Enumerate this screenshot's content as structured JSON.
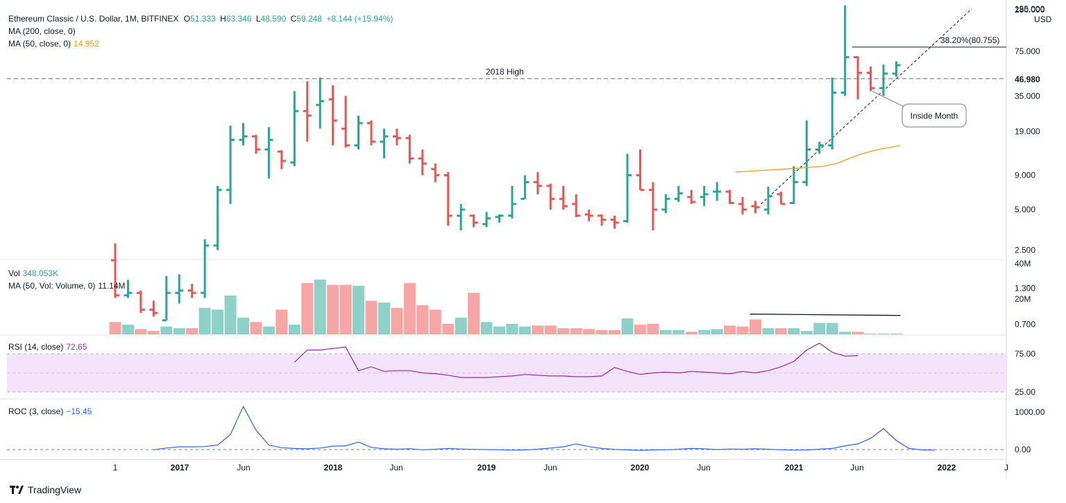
{
  "header": {
    "symbol": "Ethereum Classic / U.S. Dollar, 1M, BITFINEX",
    "o_label": "O",
    "o": "51.333",
    "h_label": "H",
    "h": "63.346",
    "l_label": "L",
    "l": "48.590",
    "c_label": "C",
    "c": "59.248",
    "change": "+8.144 (+15.94%)",
    "ma200": "MA (200, close, 0)",
    "ma50": "MA (50, close, 0)",
    "ma50_value": "14.952"
  },
  "footer": {
    "brand": "TradingView"
  },
  "colors": {
    "up": "#26a69a",
    "down": "#ef5350",
    "ma": "#f59b1b",
    "rsi": "#9c27b0",
    "roc": "#2962ff",
    "rsi_band": "#f3e4fb"
  },
  "chart_data": [
    {
      "type": "candlestick-ohlc",
      "title": "Ethereum Classic / U.S. Dollar, 1M, BITFINEX",
      "scale": "log",
      "currency": "USD",
      "y_ticks": [
        "280.000",
        "155.000",
        "75.000",
        "35.000",
        "19.000",
        "9.000",
        "5.000",
        "2.500",
        "1.300",
        "0.700"
      ],
      "x_ticks": [
        "1",
        "2017",
        "Jun",
        "2018",
        "Jun",
        "2019",
        "Jun",
        "2020",
        "Jun",
        "2021",
        "Jun",
        "2022",
        "J"
      ],
      "start_month": "2016-08",
      "bars": [
        [
          2.1,
          2.8,
          1.1,
          1.15
        ],
        [
          1.15,
          1.5,
          1.1,
          1.2
        ],
        [
          1.2,
          1.25,
          0.85,
          0.9
        ],
        [
          0.9,
          1.05,
          0.8,
          0.85
        ],
        [
          0.75,
          1.6,
          0.75,
          1.2
        ],
        [
          1.2,
          1.65,
          1.0,
          1.25
        ],
        [
          1.25,
          1.4,
          1.1,
          1.2
        ],
        [
          1.2,
          3.0,
          1.1,
          2.7
        ],
        [
          2.7,
          7.5,
          2.5,
          7.0
        ],
        [
          7.0,
          21.0,
          5.5,
          16.5
        ],
        [
          16.5,
          22.0,
          15.0,
          17.5
        ],
        [
          17.5,
          18.0,
          13.0,
          14.0
        ],
        [
          14.0,
          20.5,
          8.5,
          16.5
        ],
        [
          13.5,
          13.8,
          10.0,
          11.5
        ],
        [
          11.2,
          38.0,
          10.5,
          27.0
        ],
        [
          27.0,
          45.0,
          16.0,
          25.0
        ],
        [
          30.0,
          48.0,
          20.0,
          32.0
        ],
        [
          33.0,
          42.0,
          15.0,
          23.0
        ],
        [
          20.0,
          35.0,
          14.5,
          15.0
        ],
        [
          15.0,
          25.0,
          14.0,
          22.0
        ],
        [
          22.0,
          23.0,
          15.0,
          16.0
        ],
        [
          16.0,
          20.0,
          12.0,
          17.5
        ],
        [
          17.5,
          20.0,
          15.0,
          17.0
        ],
        [
          17.0,
          18.0,
          11.0,
          12.0
        ],
        [
          12.0,
          14.0,
          9.0,
          11.0
        ],
        [
          10.0,
          11.0,
          8.0,
          9.0
        ],
        [
          9.0,
          9.5,
          3.8,
          4.5
        ],
        [
          4.5,
          5.5,
          3.5,
          5.0
        ],
        [
          4.5,
          4.6,
          3.7,
          4.0
        ],
        [
          3.9,
          4.8,
          3.7,
          4.3
        ],
        [
          4.4,
          4.6,
          4.0,
          4.5
        ],
        [
          4.5,
          7.5,
          4.3,
          5.5
        ],
        [
          6.0,
          9.0,
          6.0,
          8.0
        ],
        [
          8.0,
          9.5,
          6.5,
          7.5
        ],
        [
          7.5,
          7.8,
          5.0,
          6.0
        ],
        [
          6.0,
          7.5,
          5.0,
          5.3
        ],
        [
          5.5,
          6.5,
          4.4,
          4.5
        ],
        [
          4.6,
          5.0,
          4.1,
          4.5
        ],
        [
          4.5,
          4.6,
          3.8,
          4.2
        ],
        [
          4.2,
          4.5,
          3.6,
          4.0
        ],
        [
          4.1,
          13.0,
          4.0,
          9.0
        ],
        [
          9.0,
          14.0,
          7.0,
          7.0
        ],
        [
          7.0,
          8.0,
          3.5,
          5.0
        ],
        [
          5.0,
          6.5,
          4.7,
          6.0
        ],
        [
          6.0,
          7.5,
          5.7,
          6.6
        ],
        [
          6.2,
          7.0,
          5.5,
          5.7
        ],
        [
          6.2,
          7.5,
          5.3,
          6.5
        ],
        [
          6.8,
          8.0,
          5.8,
          6.8
        ],
        [
          6.8,
          7.0,
          5.5,
          5.6
        ],
        [
          5.5,
          6.2,
          4.6,
          5.0
        ],
        [
          5.3,
          5.8,
          4.7,
          5.2
        ],
        [
          5.0,
          7.4,
          4.6,
          6.3
        ],
        [
          6.5,
          6.8,
          5.5,
          5.5
        ],
        [
          5.6,
          10.5,
          5.5,
          8.0
        ],
        [
          8.0,
          23.0,
          7.5,
          14.0
        ],
        [
          14.0,
          16.0,
          13.0,
          15.0
        ],
        [
          15.0,
          48.0,
          14.0,
          37.0
        ],
        [
          37.0,
          165.0,
          35.0,
          68.0
        ],
        [
          68.0,
          69.0,
          33.0,
          52.0
        ],
        [
          52.0,
          58.0,
          38.0,
          40.0
        ],
        [
          40.0,
          60.0,
          35.0,
          51.333
        ],
        [
          51.333,
          63.346,
          48.59,
          59.248
        ]
      ],
      "ma50": [
        [
          48,
          9.5
        ],
        [
          52,
          10.0
        ],
        [
          55,
          10.5
        ],
        [
          56,
          11.0
        ],
        [
          57,
          12.0
        ],
        [
          58,
          13.0
        ],
        [
          59,
          13.8
        ],
        [
          60,
          14.4
        ],
        [
          61,
          14.952
        ]
      ],
      "annotations": {
        "high_2018_label": "2018 High",
        "high_2018_value": 46.98,
        "high_2018_tag": "46.980",
        "fib_label": "38.20%(80.755)",
        "fib_value": 80.755,
        "inside_month": "Inside Month",
        "trend_start": [
          50,
          5.5
        ]
      }
    },
    {
      "type": "bar",
      "title": "Vol",
      "value_label": "348.053K",
      "ma_label": "MA (50, Vol: Volume, 0)",
      "ma_value": "11.14M",
      "y_ticks": [
        "40M",
        "20M"
      ],
      "ylim": [
        0,
        40
      ],
      "values": [
        7,
        5.5,
        3,
        2,
        4.5,
        3.5,
        3.5,
        15,
        14,
        22,
        9.5,
        7,
        4.5,
        14,
        5.5,
        29,
        31,
        28,
        28,
        27.5,
        19,
        18,
        15,
        29,
        16.5,
        14,
        6,
        9.5,
        23.5,
        7,
        4.5,
        6,
        4.5,
        5,
        5,
        3.5,
        3.5,
        3,
        2.5,
        2.5,
        9,
        5.5,
        6,
        2.5,
        2.5,
        1.5,
        2.5,
        3,
        5,
        4.5,
        8.5,
        3.5,
        3.5,
        3.5,
        2,
        6.5,
        6.5,
        1.5,
        1.5,
        0.5,
        0.5,
        0.5
      ],
      "ma_line_y": 11.5,
      "ma_line_from": 50,
      "ma_line_to": 61
    },
    {
      "type": "line",
      "title": "RSI",
      "name_label": "RSI (14, close)",
      "value_label": "72.65",
      "y_ticks": [
        "75.00",
        "25.00"
      ],
      "ylim": [
        25,
        100
      ],
      "band": [
        30,
        70
      ],
      "start_index": 14,
      "values": [
        64,
        80,
        80,
        82,
        84,
        53,
        58,
        52,
        53,
        53,
        50,
        49,
        47,
        44,
        44,
        44,
        45,
        46,
        48,
        47,
        46,
        46,
        45,
        45,
        46,
        57,
        52,
        48,
        50,
        51,
        50,
        52,
        51,
        50,
        49,
        52,
        50,
        53,
        58,
        65,
        80,
        89,
        77,
        72,
        72.65
      ]
    },
    {
      "type": "line",
      "title": "ROC",
      "name_label": "ROC (3, close)",
      "value_label": "−15.45",
      "y_ticks": [
        "1000.00",
        "0.00"
      ],
      "ylim": [
        -100,
        1200
      ],
      "start_index": 3,
      "values": [
        -5,
        40,
        75,
        75,
        80,
        120,
        400,
        1150,
        520,
        120,
        50,
        30,
        20,
        40,
        90,
        100,
        200,
        60,
        20,
        10,
        20,
        -5,
        10,
        30,
        15,
        5,
        0,
        -5,
        -15,
        -10,
        10,
        40,
        75,
        150,
        80,
        30,
        5,
        -10,
        -20,
        -10,
        -5,
        10,
        30,
        20,
        0,
        15,
        10,
        20,
        10,
        -5,
        -15,
        -10,
        10,
        30,
        100,
        150,
        300,
        560,
        240,
        30,
        -10,
        -15.45
      ]
    }
  ]
}
